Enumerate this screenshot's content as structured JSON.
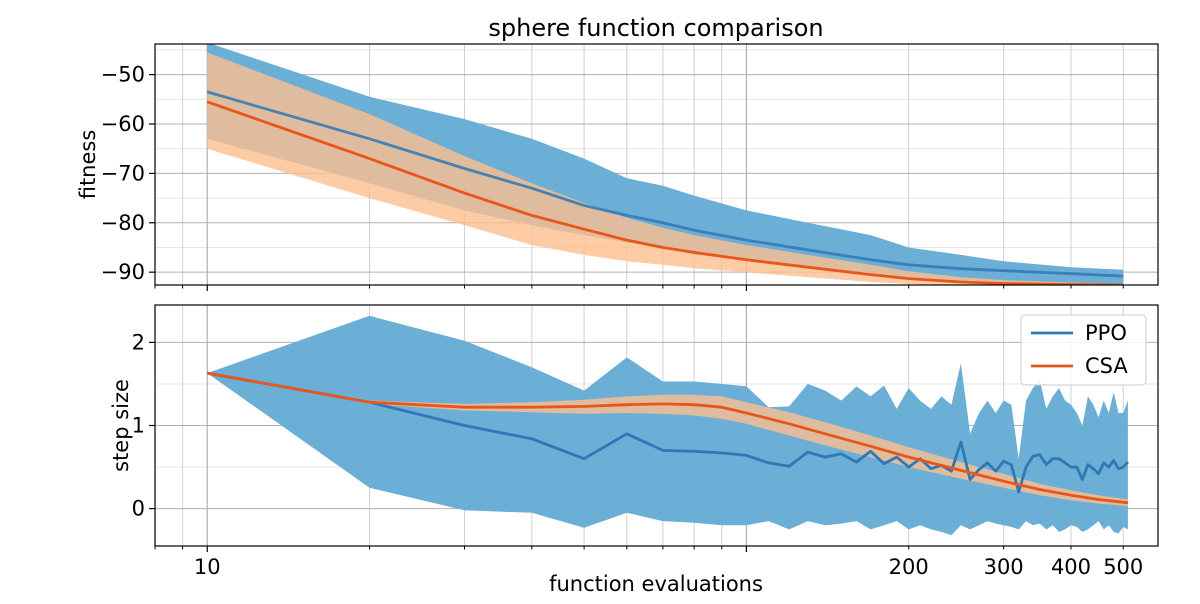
{
  "figure": {
    "title": "sphere function comparison",
    "xlabel": "function evaluations"
  },
  "colors": {
    "ppo_line": "#2e78b5",
    "ppo_band": "#6baed6",
    "csa_line": "#e8561a",
    "csa_band": "#fdbf8f",
    "grid_major": "#b0b0b0",
    "grid_minor": "#e6e6e6"
  },
  "chart_data": [
    {
      "type": "line",
      "panel": "top",
      "title": "sphere function comparison",
      "xlabel": "",
      "ylabel": "fitness",
      "xscale": "log",
      "xlim": [
        8,
        580
      ],
      "ylim": [
        -92.6,
        -43.8
      ],
      "yticks": [
        -50,
        -60,
        -70,
        -80,
        -90
      ],
      "ytick_labels": [
        "−50",
        "−60",
        "−70",
        "−80",
        "−90"
      ],
      "grid": true,
      "series": [
        {
          "name": "PPO",
          "x": [
            10,
            20,
            30,
            40,
            50,
            60,
            70,
            80,
            100,
            130,
            170,
            200,
            250,
            300,
            400,
            500
          ],
          "y": [
            -53.5,
            -63,
            -69,
            -73,
            -76.5,
            -78.5,
            -80,
            -81.5,
            -83.5,
            -85.5,
            -87.5,
            -88.5,
            -89.3,
            -89.7,
            -90.3,
            -90.8
          ],
          "lower": [
            -63,
            -72,
            -77.5,
            -80.5,
            -82.5,
            -84,
            -85,
            -86.5,
            -87.5,
            -89,
            -90.5,
            -91.2,
            -91.7,
            -92,
            -92.2,
            -92.4
          ],
          "upper": [
            -43.5,
            -54.5,
            -59,
            -63,
            -67,
            -71,
            -72.5,
            -74.5,
            -77.5,
            -80,
            -82.5,
            -85,
            -86.5,
            -87.8,
            -89,
            -89.5
          ]
        },
        {
          "name": "CSA",
          "x": [
            10,
            20,
            30,
            40,
            50,
            60,
            70,
            80,
            100,
            130,
            170,
            200,
            250,
            300,
            400,
            500
          ],
          "y": [
            -55.5,
            -67,
            -74,
            -78.5,
            -81.3,
            -83.5,
            -85,
            -86,
            -87.5,
            -89,
            -90.5,
            -91.3,
            -92,
            -92.3,
            -92.5,
            -92.6
          ],
          "lower": [
            -65,
            -75,
            -80.5,
            -84.5,
            -86.5,
            -87.8,
            -88.5,
            -89.2,
            -90,
            -91,
            -92,
            -92.4,
            -92.6,
            -92.8,
            -92.8,
            -92.8
          ],
          "upper": [
            -45.5,
            -58,
            -66.5,
            -72,
            -76,
            -79,
            -81,
            -82.5,
            -84.5,
            -86.5,
            -88.5,
            -89.8,
            -91,
            -91.6,
            -92.1,
            -92.4
          ]
        }
      ]
    },
    {
      "type": "line",
      "panel": "bottom",
      "title": "",
      "xlabel": "function evaluations",
      "ylabel": "step size",
      "xscale": "log",
      "xlim": [
        8,
        580
      ],
      "ylim": [
        -0.45,
        2.45
      ],
      "yticks": [
        0,
        1,
        2
      ],
      "ytick_labels": [
        "0",
        "1",
        "2"
      ],
      "xticks": [
        10,
        200,
        300,
        400,
        500
      ],
      "xtick_labels": [
        "10",
        "200",
        "300",
        "400",
        "500"
      ],
      "xticks_major_grid": [
        10,
        100
      ],
      "xticks_minor_grid": [
        20,
        30,
        40,
        50,
        60,
        70,
        80,
        90,
        200,
        300,
        400,
        500
      ],
      "grid": true,
      "legend": {
        "placement": "top-right",
        "entries": [
          "PPO",
          "CSA"
        ]
      },
      "series": [
        {
          "name": "PPO",
          "x": [
            10,
            20,
            30,
            40,
            50,
            60,
            70,
            80,
            90,
            100,
            110,
            120,
            130,
            140,
            150,
            160,
            170,
            180,
            190,
            200,
            210,
            220,
            230,
            240,
            250,
            260,
            270,
            280,
            290,
            300,
            310,
            320,
            330,
            340,
            350,
            360,
            370,
            380,
            390,
            400,
            410,
            420,
            430,
            440,
            450,
            460,
            470,
            480,
            490,
            500,
            510
          ],
          "y": [
            1.63,
            1.28,
            1.0,
            0.84,
            0.6,
            0.9,
            0.7,
            0.69,
            0.67,
            0.64,
            0.55,
            0.51,
            0.68,
            0.62,
            0.66,
            0.56,
            0.69,
            0.54,
            0.62,
            0.5,
            0.6,
            0.48,
            0.52,
            0.45,
            0.8,
            0.35,
            0.47,
            0.55,
            0.45,
            0.57,
            0.53,
            0.2,
            0.5,
            0.63,
            0.65,
            0.53,
            0.6,
            0.6,
            0.55,
            0.5,
            0.5,
            0.35,
            0.53,
            0.48,
            0.42,
            0.55,
            0.5,
            0.58,
            0.48,
            0.5,
            0.56
          ],
          "lower": [
            1.63,
            0.25,
            -0.02,
            -0.05,
            -0.23,
            -0.05,
            -0.15,
            -0.17,
            -0.2,
            -0.2,
            -0.15,
            -0.25,
            -0.15,
            -0.2,
            -0.18,
            -0.15,
            -0.25,
            -0.2,
            -0.15,
            -0.25,
            -0.2,
            -0.25,
            -0.28,
            -0.32,
            -0.2,
            -0.25,
            -0.2,
            -0.15,
            -0.18,
            -0.2,
            -0.22,
            -0.25,
            -0.15,
            -0.2,
            -0.18,
            -0.25,
            -0.2,
            -0.28,
            -0.25,
            -0.2,
            -0.22,
            -0.28,
            -0.25,
            -0.2,
            -0.15,
            -0.25,
            -0.2,
            -0.28,
            -0.3,
            -0.22,
            -0.25
          ],
          "upper": [
            1.63,
            2.32,
            2.02,
            1.7,
            1.42,
            1.82,
            1.53,
            1.53,
            1.5,
            1.47,
            1.22,
            1.23,
            1.5,
            1.42,
            1.3,
            1.47,
            1.35,
            1.48,
            1.2,
            1.45,
            1.3,
            1.2,
            1.35,
            1.25,
            1.75,
            0.9,
            1.15,
            1.3,
            1.15,
            1.3,
            1.25,
            0.6,
            1.3,
            1.45,
            1.55,
            1.2,
            1.35,
            1.45,
            1.3,
            1.25,
            1.15,
            1.0,
            1.35,
            1.25,
            1.1,
            1.3,
            1.15,
            1.4,
            1.15,
            1.15,
            1.3
          ]
        },
        {
          "name": "CSA",
          "x": [
            10,
            20,
            30,
            40,
            50,
            60,
            70,
            80,
            90,
            100,
            120,
            140,
            170,
            200,
            250,
            300,
            350,
            400,
            450,
            510
          ],
          "y": [
            1.63,
            1.28,
            1.22,
            1.22,
            1.23,
            1.25,
            1.26,
            1.25,
            1.22,
            1.15,
            1.02,
            0.9,
            0.75,
            0.62,
            0.46,
            0.33,
            0.23,
            0.16,
            0.11,
            0.07
          ],
          "lower": [
            1.63,
            1.26,
            1.18,
            1.16,
            1.14,
            1.15,
            1.14,
            1.12,
            1.08,
            1.02,
            0.88,
            0.76,
            0.62,
            0.5,
            0.36,
            0.25,
            0.16,
            0.1,
            0.06,
            0.03
          ],
          "upper": [
            1.63,
            1.3,
            1.26,
            1.28,
            1.31,
            1.35,
            1.37,
            1.37,
            1.35,
            1.28,
            1.16,
            1.04,
            0.88,
            0.74,
            0.56,
            0.42,
            0.3,
            0.22,
            0.16,
            0.11
          ]
        }
      ]
    }
  ]
}
